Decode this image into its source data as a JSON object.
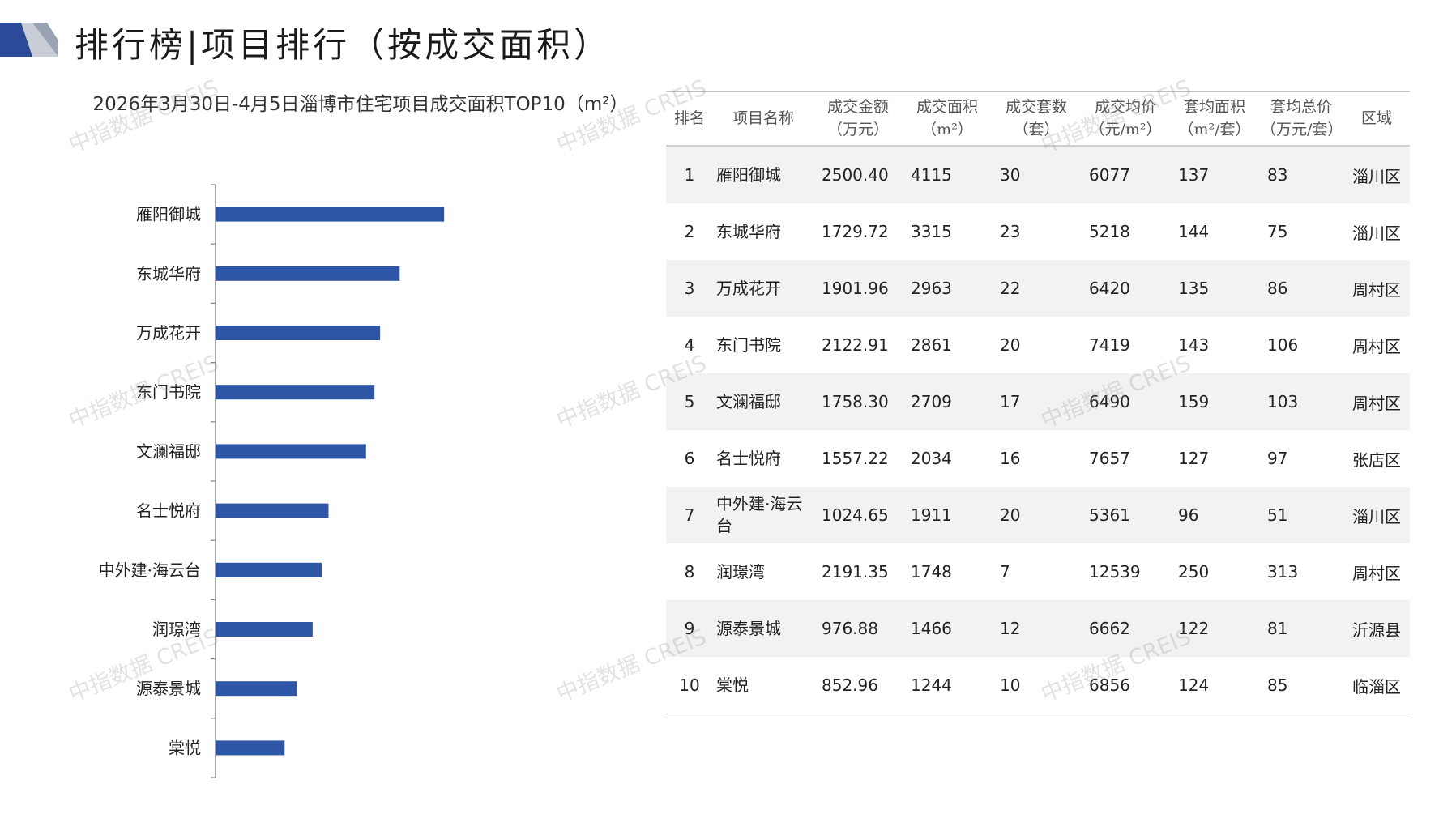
{
  "header": {
    "title": "排行榜|项目排行（按成交面积）"
  },
  "watermark_text": "中指数据 CREIS",
  "chart_data": {
    "type": "bar",
    "orientation": "horizontal",
    "title": "2026年3月30日-4月5日淄博市住宅项目成交面积TOP10（m²）",
    "categories": [
      "雁阳御城",
      "东城华府",
      "万成花开",
      "东门书院",
      "文澜福邸",
      "名士悦府",
      "中外建·海云台",
      "润璟湾",
      "源泰景城",
      "棠悦"
    ],
    "values": [
      4115,
      3315,
      2963,
      2861,
      2709,
      2034,
      1911,
      1748,
      1466,
      1244
    ],
    "xlim": [
      0,
      7000
    ],
    "bar_color": "#2e56a6",
    "xlabel": "",
    "ylabel": "",
    "grid": false
  },
  "table": {
    "headers": [
      {
        "line1": "排名",
        "line2": ""
      },
      {
        "line1": "项目名称",
        "line2": ""
      },
      {
        "line1": "成交金额",
        "line2": "（万元）"
      },
      {
        "line1": "成交面积",
        "line2": "（m²）"
      },
      {
        "line1": "成交套数",
        "line2": "（套）"
      },
      {
        "line1": "成交均价",
        "line2": "（元/m²）"
      },
      {
        "line1": "套均面积",
        "line2": "（m²/套）"
      },
      {
        "line1": "套均总价",
        "line2": "（万元/套）"
      },
      {
        "line1": "区域",
        "line2": ""
      }
    ],
    "rows": [
      [
        "1",
        "雁阳御城",
        "2500.40",
        "4115",
        "30",
        "6077",
        "137",
        "83",
        "淄川区"
      ],
      [
        "2",
        "东城华府",
        "1729.72",
        "3315",
        "23",
        "5218",
        "144",
        "75",
        "淄川区"
      ],
      [
        "3",
        "万成花开",
        "1901.96",
        "2963",
        "22",
        "6420",
        "135",
        "86",
        "周村区"
      ],
      [
        "4",
        "东门书院",
        "2122.91",
        "2861",
        "20",
        "7419",
        "143",
        "106",
        "周村区"
      ],
      [
        "5",
        "文澜福邸",
        "1758.30",
        "2709",
        "17",
        "6490",
        "159",
        "103",
        "周村区"
      ],
      [
        "6",
        "名士悦府",
        "1557.22",
        "2034",
        "16",
        "7657",
        "127",
        "97",
        "张店区"
      ],
      [
        "7",
        "中外建·海云台",
        "1024.65",
        "1911",
        "20",
        "5361",
        "96",
        "51",
        "淄川区"
      ],
      [
        "8",
        "润璟湾",
        "2191.35",
        "1748",
        "7",
        "12539",
        "250",
        "313",
        "周村区"
      ],
      [
        "9",
        "源泰景城",
        "976.88",
        "1466",
        "12",
        "6662",
        "122",
        "81",
        "沂源县"
      ],
      [
        "10",
        "棠悦",
        "852.96",
        "1244",
        "10",
        "6856",
        "124",
        "85",
        "临淄区"
      ]
    ]
  },
  "colors": {
    "bar": "#2e56a6",
    "logo_dark": "#2b4a99",
    "logo_light": "#c8cdd6",
    "row_stripe": "#f2f2f2"
  }
}
